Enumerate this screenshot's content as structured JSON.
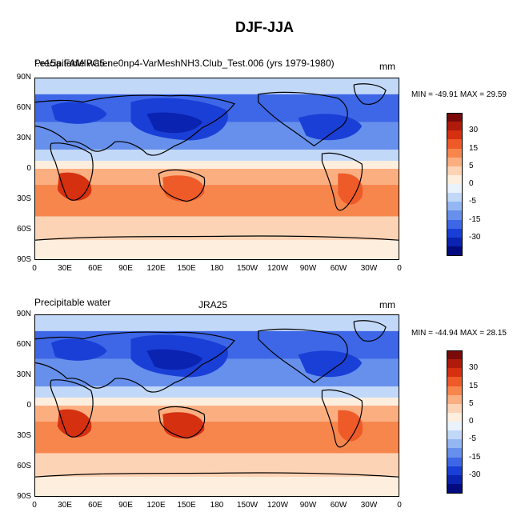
{
  "main_title": "DJF-JJA",
  "panels": [
    {
      "left_title": "Precipitable water",
      "center_title": "f.e15a.FAMIPC5.ne0np4-VarMeshNH3.Club_Test.006 (yrs 1979-1980)",
      "units": "mm",
      "stats": "MIN = -49.91 MAX =  29.59"
    },
    {
      "left_title": "Precipitable water",
      "center_title": "JRA25",
      "units": "mm",
      "stats": "MIN = -44.94 MAX =  28.15"
    }
  ],
  "lat_labels": [
    "90N",
    "60N",
    "30N",
    "0",
    "30S",
    "60S",
    "90S"
  ],
  "lon_labels": [
    "0",
    "30E",
    "60E",
    "90E",
    "120E",
    "150E",
    "180",
    "150W",
    "120W",
    "90W",
    "60W",
    "30W",
    "0"
  ],
  "colorbar": {
    "labels": [
      "30",
      "15",
      "5",
      "0",
      "-5",
      "-15",
      "-30"
    ],
    "colors": [
      "#7a0a0a",
      "#b01a0a",
      "#d53010",
      "#ee5a28",
      "#f7864d",
      "#fbae80",
      "#fdd3b5",
      "#fdeede",
      "#eaf2fb",
      "#c2d8f8",
      "#94b7f3",
      "#6690ec",
      "#3d67e6",
      "#1a3fd6",
      "#0a23b0",
      "#020a80"
    ]
  }
}
